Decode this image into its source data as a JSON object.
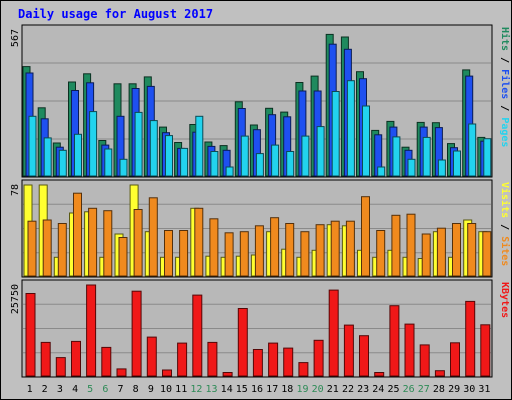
{
  "title": "Daily usage for August 2017",
  "colors": {
    "frame_bg": "#C0C0C0",
    "plot_bg": "#B8B8B8",
    "title_text": "#0000FF",
    "hits": "#1F8A5E",
    "files": "#1E50F0",
    "pages": "#22D3EE",
    "visits": "#FFFF30",
    "sites": "#F08A1E",
    "kbytes": "#F01818",
    "weekend_label": "#2E8B57",
    "weekday_label": "#000000"
  },
  "chart_data": [
    {
      "type": "bar",
      "panel": "hits-files-pages",
      "ymax_label": "567",
      "ylim": [
        0,
        567
      ],
      "grid": true,
      "legend": [
        "Hits",
        "Files",
        "Pages"
      ],
      "categories": [
        "1",
        "2",
        "3",
        "4",
        "5",
        "6",
        "7",
        "8",
        "9",
        "10",
        "11",
        "12",
        "13",
        "14",
        "15",
        "16",
        "17",
        "18",
        "19",
        "20",
        "21",
        "22",
        "23",
        "24",
        "25",
        "26",
        "27",
        "28",
        "29",
        "30",
        "31"
      ],
      "series": [
        {
          "name": "Hits",
          "values": [
            425,
            265,
            128,
            365,
            397,
            138,
            358,
            358,
            385,
            190,
            130,
            200,
            132,
            118,
            288,
            198,
            263,
            248,
            363,
            388,
            550,
            540,
            405,
            177,
            212,
            112,
            208,
            207,
            126,
            412,
            150
          ]
        },
        {
          "name": "Files",
          "values": [
            400,
            222,
            112,
            332,
            362,
            120,
            232,
            340,
            348,
            168,
            107,
            170,
            115,
            100,
            262,
            180,
            238,
            230,
            330,
            330,
            512,
            492,
            378,
            160,
            190,
            100,
            190,
            188,
            110,
            388,
            135
          ]
        },
        {
          "name": "Pages",
          "values": [
            232,
            148,
            100,
            162,
            250,
            105,
            65,
            247,
            215,
            157,
            107,
            232,
            95,
            35,
            155,
            87,
            120,
            95,
            155,
            192,
            328,
            370,
            272,
            35,
            152,
            65,
            150,
            62,
            97,
            202,
            145
          ]
        }
      ]
    },
    {
      "type": "bar",
      "panel": "visits-sites",
      "ymax_label": "78",
      "ylim": [
        0,
        78
      ],
      "grid": true,
      "legend": [
        "Visits",
        "Sites"
      ],
      "categories": [
        "1",
        "2",
        "3",
        "4",
        "5",
        "6",
        "7",
        "8",
        "9",
        "10",
        "11",
        "12",
        "13",
        "14",
        "15",
        "16",
        "17",
        "18",
        "19",
        "20",
        "21",
        "22",
        "23",
        "24",
        "25",
        "26",
        "27",
        "28",
        "29",
        "30",
        "31"
      ],
      "series": [
        {
          "name": "Visits",
          "values": [
            78,
            78,
            16,
            54,
            55,
            16,
            36,
            78,
            38,
            16,
            16,
            58,
            17,
            16,
            17,
            18,
            38,
            23,
            16,
            22,
            44,
            43,
            22,
            16,
            22,
            16,
            15,
            38,
            16,
            48,
            38
          ]
        },
        {
          "name": "Sites",
          "values": [
            47,
            48,
            45,
            71,
            58,
            56,
            33,
            57,
            67,
            39,
            39,
            58,
            49,
            37,
            38,
            43,
            50,
            45,
            38,
            44,
            47,
            47,
            68,
            39,
            52,
            53,
            36,
            41,
            45,
            45,
            38
          ]
        }
      ]
    },
    {
      "type": "bar",
      "panel": "kbytes",
      "ymax_label": "25750",
      "ylim": [
        0,
        25750
      ],
      "grid": true,
      "legend": [
        "KBytes"
      ],
      "categories": [
        "1",
        "2",
        "3",
        "4",
        "5",
        "6",
        "7",
        "8",
        "9",
        "10",
        "11",
        "12",
        "13",
        "14",
        "15",
        "16",
        "17",
        "18",
        "19",
        "20",
        "21",
        "22",
        "23",
        "24",
        "25",
        "26",
        "27",
        "28",
        "29",
        "30",
        "31"
      ],
      "series": [
        {
          "name": "KBytes",
          "values": [
            23350,
            9500,
            5200,
            9800,
            25750,
            8100,
            2000,
            24000,
            11000,
            1700,
            9300,
            22900,
            9500,
            1000,
            19100,
            7500,
            9300,
            7900,
            3800,
            10100,
            24300,
            14400,
            11400,
            1000,
            19900,
            14700,
            8800,
            1500,
            9400,
            21100,
            14500
          ]
        }
      ]
    }
  ],
  "x_labels": [
    {
      "text": "1",
      "weekend": false
    },
    {
      "text": "2",
      "weekend": false
    },
    {
      "text": "3",
      "weekend": false
    },
    {
      "text": "4",
      "weekend": false
    },
    {
      "text": "5",
      "weekend": true
    },
    {
      "text": "6",
      "weekend": true
    },
    {
      "text": "7",
      "weekend": false
    },
    {
      "text": "8",
      "weekend": false
    },
    {
      "text": "9",
      "weekend": false
    },
    {
      "text": "10",
      "weekend": false
    },
    {
      "text": "11",
      "weekend": false
    },
    {
      "text": "12",
      "weekend": true
    },
    {
      "text": "13",
      "weekend": true
    },
    {
      "text": "14",
      "weekend": false
    },
    {
      "text": "15",
      "weekend": false
    },
    {
      "text": "16",
      "weekend": false
    },
    {
      "text": "17",
      "weekend": false
    },
    {
      "text": "18",
      "weekend": false
    },
    {
      "text": "19",
      "weekend": true
    },
    {
      "text": "20",
      "weekend": true
    },
    {
      "text": "21",
      "weekend": false
    },
    {
      "text": "22",
      "weekend": false
    },
    {
      "text": "23",
      "weekend": false
    },
    {
      "text": "24",
      "weekend": false
    },
    {
      "text": "25",
      "weekend": false
    },
    {
      "text": "26",
      "weekend": true
    },
    {
      "text": "27",
      "weekend": true
    },
    {
      "text": "28",
      "weekend": false
    },
    {
      "text": "29",
      "weekend": false
    },
    {
      "text": "30",
      "weekend": false
    },
    {
      "text": "31",
      "weekend": false
    }
  ]
}
